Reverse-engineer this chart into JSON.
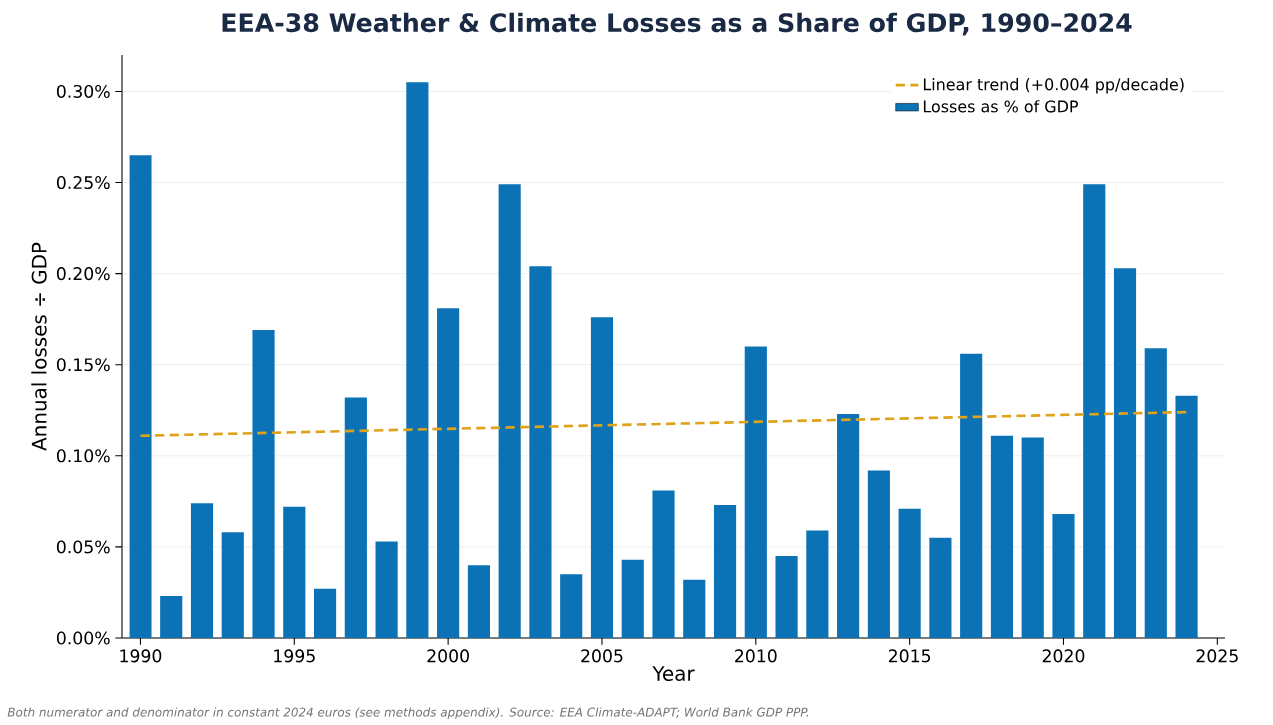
{
  "chart_data": {
    "type": "bar",
    "title": "EEA-38 Weather & Climate Losses as a Share of GDP, 1990–2024",
    "xlabel": "Year",
    "ylabel": "Annual losses ÷ GDP",
    "annotations": [
      "Both numerator and denominator in constant 2024 euros (see methods appendix). Source: EEA Climate-ADAPT; World Bank GDP PPP."
    ],
    "x": [
      1990,
      1991,
      1992,
      1993,
      1994,
      1995,
      1996,
      1997,
      1998,
      1999,
      2000,
      2001,
      2002,
      2003,
      2004,
      2005,
      2006,
      2007,
      2008,
      2009,
      2010,
      2011,
      2012,
      2013,
      2014,
      2015,
      2016,
      2017,
      2018,
      2019,
      2020,
      2021,
      2022,
      2023,
      2024
    ],
    "series": [
      {
        "name": "Linear trend (+0.004 pp/decade)",
        "type": "line",
        "line_style": "dashed",
        "color": "#e0a21a",
        "x": [
          1990,
          2024
        ],
        "values": [
          0.111,
          0.124
        ]
      },
      {
        "name": "Losses as % of GDP",
        "color": "#0b72b5",
        "values": [
          0.265,
          0.023,
          0.074,
          0.058,
          0.169,
          0.072,
          0.027,
          0.132,
          0.053,
          0.305,
          0.181,
          0.04,
          0.249,
          0.204,
          0.035,
          0.176,
          0.043,
          0.081,
          0.032,
          0.073,
          0.16,
          0.045,
          0.059,
          0.123,
          0.092,
          0.071,
          0.055,
          0.156,
          0.111,
          0.11,
          0.068,
          0.249,
          0.203,
          0.159,
          0.133
        ]
      }
    ],
    "xlim": [
      1989.4,
      2025.25
    ],
    "xticks": [
      1990,
      1995,
      2000,
      2005,
      2010,
      2015,
      2020,
      2025
    ],
    "ylim": [
      0,
      0.32
    ],
    "yticks": [
      {
        "value": 0,
        "label": "0.00%"
      },
      {
        "value": 0.05,
        "label": "0.05%"
      },
      {
        "value": 0.1,
        "label": "0.10%"
      },
      {
        "value": 0.15,
        "label": "0.15%"
      },
      {
        "value": 0.2,
        "label": "0.20%"
      },
      {
        "value": 0.25,
        "label": "0.25%"
      },
      {
        "value": 0.3,
        "label": "0.30%"
      }
    ],
    "grid": "y",
    "legend": "top right"
  }
}
